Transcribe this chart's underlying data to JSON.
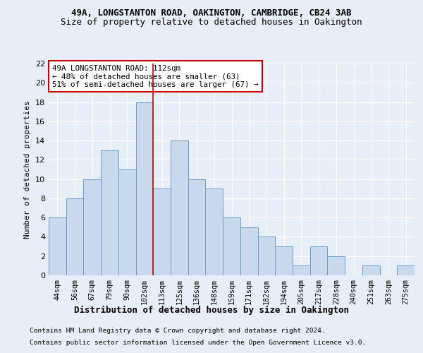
{
  "title1": "49A, LONGSTANTON ROAD, OAKINGTON, CAMBRIDGE, CB24 3AB",
  "title2": "Size of property relative to detached houses in Oakington",
  "xlabel": "Distribution of detached houses by size in Oakington",
  "ylabel": "Number of detached properties",
  "categories": [
    "44sqm",
    "56sqm",
    "67sqm",
    "79sqm",
    "90sqm",
    "102sqm",
    "113sqm",
    "125sqm",
    "136sqm",
    "148sqm",
    "159sqm",
    "171sqm",
    "182sqm",
    "194sqm",
    "205sqm",
    "217sqm",
    "228sqm",
    "240sqm",
    "251sqm",
    "263sqm",
    "275sqm"
  ],
  "values": [
    6,
    8,
    10,
    13,
    11,
    18,
    9,
    14,
    10,
    9,
    6,
    5,
    4,
    3,
    1,
    3,
    2,
    0,
    1,
    0,
    1
  ],
  "bar_color": "#c9d9ed",
  "bar_edge_color": "#6a9ec0",
  "vline_x": 5.5,
  "ylim": [
    0,
    22
  ],
  "yticks": [
    0,
    2,
    4,
    6,
    8,
    10,
    12,
    14,
    16,
    18,
    20,
    22
  ],
  "annotation_box_text": "49A LONGSTANTON ROAD: 112sqm\n← 48% of detached houses are smaller (63)\n51% of semi-detached houses are larger (67) →",
  "vline_color": "#cc0000",
  "footer1": "Contains HM Land Registry data © Crown copyright and database right 2024.",
  "footer2": "Contains public sector information licensed under the Open Government Licence v3.0.",
  "bg_color": "#e8eef7",
  "plot_bg_color": "#e8eef7"
}
